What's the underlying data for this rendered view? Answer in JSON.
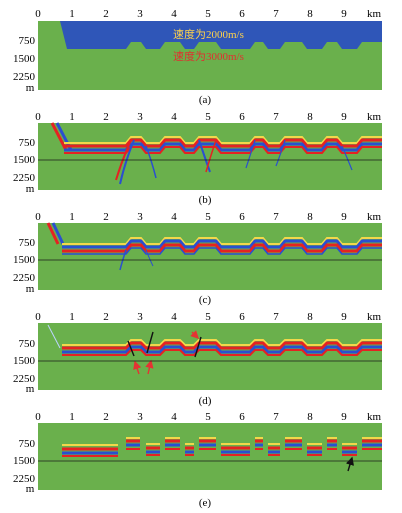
{
  "colors": {
    "background": "#6ab04c",
    "low_velocity": "#2f56b8",
    "note_high": "#e03030",
    "note_low": "#ffd24a",
    "reflector_red": "#e52222",
    "reflector_blue": "#2a4fd0",
    "reflector_yellow": "#f2d84a",
    "arrow_red": "#e53333",
    "marker_black": "#111111"
  },
  "axes": {
    "x_ticks": [
      "0",
      "1",
      "2",
      "3",
      "4",
      "5",
      "6",
      "7",
      "8",
      "9"
    ],
    "x_unit": "km",
    "y_ticks": [
      "750",
      "1500",
      "2250"
    ],
    "y_unit": "m"
  },
  "panels": [
    {
      "caption": "(a)",
      "notes": [
        "速度为2000m/s",
        "速度为3000m/s"
      ]
    },
    {
      "caption": "(b)"
    },
    {
      "caption": "(c)"
    },
    {
      "caption": "(d)"
    },
    {
      "caption": "(e)"
    }
  ],
  "chart_data": {
    "type": "other",
    "x_range_km": [
      0,
      10
    ],
    "y_range_m": [
      0,
      3000
    ],
    "reference_depth_m": 1500,
    "interface_km_m": [
      [
        0.65,
        0
      ],
      [
        0.85,
        1150
      ],
      [
        2.6,
        1150
      ],
      [
        2.75,
        950
      ],
      [
        3.05,
        950
      ],
      [
        3.2,
        1150
      ],
      [
        3.65,
        1150
      ],
      [
        3.8,
        950
      ],
      [
        4.2,
        950
      ],
      [
        4.35,
        1150
      ],
      [
        4.6,
        1150
      ],
      [
        4.75,
        950
      ],
      [
        5.25,
        950
      ],
      [
        5.4,
        1150
      ],
      [
        6.25,
        1150
      ],
      [
        6.4,
        950
      ],
      [
        6.65,
        950
      ],
      [
        6.8,
        1150
      ],
      [
        7.15,
        1150
      ],
      [
        7.3,
        950
      ],
      [
        7.8,
        950
      ],
      [
        7.95,
        1150
      ],
      [
        8.4,
        1150
      ],
      [
        8.55,
        950
      ],
      [
        8.85,
        950
      ],
      [
        9.0,
        1150
      ],
      [
        9.45,
        1150
      ],
      [
        9.6,
        950
      ],
      [
        10,
        950
      ]
    ]
  }
}
